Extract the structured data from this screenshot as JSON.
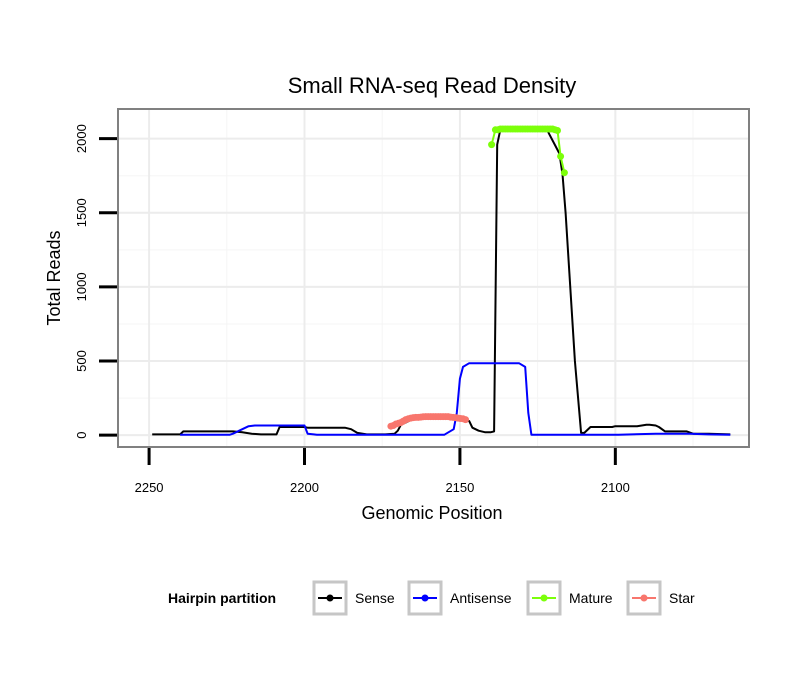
{
  "chart_data": {
    "type": "line",
    "title": "Small RNA-seq Read Density",
    "xlabel": "Genomic Position",
    "ylabel": "Total Reads",
    "x_reversed": true,
    "xlim": [
      2260,
      2057
    ],
    "ylim": [
      -80,
      2200
    ],
    "x_ticks": [
      2250,
      2200,
      2150,
      2100
    ],
    "x_tick_labels": [
      "2250",
      "2200",
      "2150",
      "2100"
    ],
    "y_ticks": [
      0,
      500,
      1000,
      1500,
      2000
    ],
    "y_tick_labels": [
      "0",
      "500",
      "1000",
      "1500",
      "2000"
    ],
    "grid": true,
    "legend": {
      "title": "Hairpin partition",
      "position": "bottom",
      "entries": [
        "Sense",
        "Antisense",
        "Mature",
        "Star"
      ]
    },
    "series": [
      {
        "name": "Sense",
        "color": "#000000",
        "markers": false,
        "x": [
          2249,
          2240,
          2239,
          2223,
          2220,
          2217,
          2214,
          2209,
          2208,
          2200,
          2199,
          2187,
          2185,
          2183,
          2180,
          2174,
          2171,
          2170,
          2169,
          2167,
          2165,
          2163,
          2161,
          2158,
          2155,
          2150,
          2147,
          2146,
          2144,
          2142,
          2140,
          2139,
          2138,
          2137,
          2126,
          2122,
          2118,
          2117,
          2116,
          2113,
          2111,
          2110,
          2108,
          2106,
          2101,
          2100,
          2093,
          2090,
          2089,
          2087,
          2086,
          2084,
          2077,
          2075,
          2074,
          2070,
          2063
        ],
        "y": [
          5,
          5,
          25,
          25,
          20,
          10,
          5,
          5,
          55,
          55,
          50,
          50,
          40,
          15,
          5,
          5,
          10,
          30,
          70,
          90,
          110,
          120,
          125,
          125,
          125,
          115,
          95,
          50,
          30,
          20,
          20,
          25,
          1960,
          2060,
          2060,
          2060,
          1900,
          1760,
          1500,
          500,
          15,
          15,
          55,
          55,
          55,
          60,
          60,
          70,
          70,
          65,
          55,
          25,
          25,
          10,
          10,
          10,
          5
        ]
      },
      {
        "name": "Antisense",
        "color": "#0000ff",
        "markers": false,
        "x": [
          2240,
          2224,
          2223,
          2220,
          2218,
          2216,
          2200,
          2199,
          2197,
          2196,
          2185,
          2175,
          2170,
          2155,
          2152,
          2151,
          2150,
          2149,
          2147,
          2145,
          2131,
          2129,
          2128,
          2127,
          2119,
          2099,
          2087,
          2076,
          2070,
          2063
        ],
        "y": [
          3,
          3,
          10,
          40,
          60,
          65,
          65,
          10,
          5,
          3,
          3,
          3,
          3,
          3,
          40,
          150,
          380,
          460,
          485,
          485,
          485,
          460,
          150,
          3,
          3,
          3,
          10,
          10,
          5,
          3
        ]
      },
      {
        "name": "Mature",
        "color": "#7cff0a",
        "markers": true,
        "x": [
          2139.8,
          2138.6,
          2137.8,
          2137.0,
          2136.2,
          2135.4,
          2134.6,
          2133.8,
          2133.0,
          2132.2,
          2131.4,
          2130.6,
          2129.8,
          2129.0,
          2128.2,
          2127.4,
          2126.6,
          2125.8,
          2125.0,
          2124.2,
          2123.4,
          2122.6,
          2121.8,
          2121.0,
          2120.2,
          2119.4,
          2118.6,
          2117.6,
          2116.4
        ],
        "y": [
          1960,
          2060,
          2060,
          2065,
          2065,
          2065,
          2065,
          2065,
          2065,
          2065,
          2065,
          2065,
          2065,
          2065,
          2065,
          2065,
          2065,
          2065,
          2065,
          2065,
          2065,
          2065,
          2065,
          2065,
          2065,
          2060,
          2055,
          1880,
          1770
        ]
      },
      {
        "name": "Star",
        "color": "#f8766d",
        "markers": true,
        "x": [
          2172.2,
          2171.4,
          2170.6,
          2169.8,
          2169.0,
          2168.2,
          2167.4,
          2166.6,
          2165.8,
          2165.0,
          2164.2,
          2163.4,
          2162.6,
          2161.8,
          2161.0,
          2160.2,
          2159.4,
          2158.6,
          2157.8,
          2157.0,
          2156.2,
          2155.4,
          2154.6,
          2153.8,
          2153.0,
          2152.2,
          2151.4,
          2150.6,
          2149.8,
          2149.0,
          2148.2
        ],
        "y": [
          60,
          65,
          75,
          80,
          85,
          95,
          105,
          110,
          115,
          118,
          120,
          120,
          122,
          124,
          125,
          125,
          125,
          125,
          125,
          125,
          125,
          125,
          125,
          125,
          122,
          120,
          118,
          115,
          112,
          110,
          105
        ]
      }
    ]
  }
}
